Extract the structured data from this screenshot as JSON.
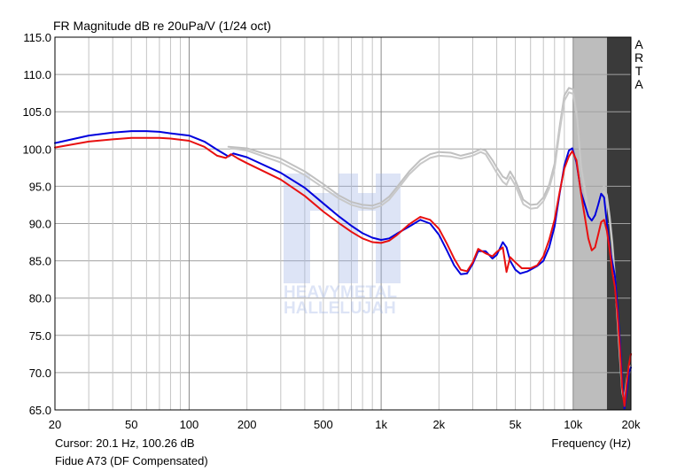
{
  "chart_data": {
    "type": "line",
    "title": "FR Magnitude dB re 20uPa/V (1/24 oct)",
    "xlabel": "Frequency (Hz)",
    "ylabel": "",
    "x_scale": "log",
    "xlim": [
      20,
      20000
    ],
    "ylim": [
      65.0,
      115.0
    ],
    "grid": true,
    "y_ticks": [
      "115.0",
      "110.0",
      "105.0",
      "100.0",
      "95.0",
      "90.0",
      "85.0",
      "80.0",
      "75.0",
      "70.0",
      "65.0"
    ],
    "x_ticks": [
      {
        "value": 20,
        "label": "20"
      },
      {
        "value": 50,
        "label": "50"
      },
      {
        "value": 100,
        "label": "100"
      },
      {
        "value": 200,
        "label": "200"
      },
      {
        "value": 500,
        "label": "500"
      },
      {
        "value": 1000,
        "label": "1k"
      },
      {
        "value": 2000,
        "label": "2k"
      },
      {
        "value": 5000,
        "label": "5k"
      },
      {
        "value": 10000,
        "label": "10k"
      },
      {
        "value": 20000,
        "label": "20k"
      }
    ],
    "shaded_regions": [
      {
        "from": 10000,
        "to": 15000,
        "color": "#bdbdbd"
      },
      {
        "from": 15000,
        "to": 20000,
        "color": "#3a3a3a"
      }
    ],
    "series": [
      {
        "color": "#c0c0c0",
        "points": [
          [
            160,
            100.3
          ],
          [
            200,
            100.1
          ],
          [
            300,
            98.7
          ],
          [
            400,
            97.0
          ],
          [
            500,
            95.3
          ],
          [
            600,
            93.8
          ],
          [
            700,
            92.9
          ],
          [
            800,
            92.5
          ],
          [
            900,
            92.4
          ],
          [
            1000,
            92.8
          ],
          [
            1100,
            93.6
          ],
          [
            1200,
            94.8
          ],
          [
            1400,
            97.0
          ],
          [
            1600,
            98.5
          ],
          [
            1800,
            99.3
          ],
          [
            2000,
            99.6
          ],
          [
            2300,
            99.5
          ],
          [
            2600,
            99.1
          ],
          [
            3000,
            99.5
          ],
          [
            3300,
            100.0
          ],
          [
            3500,
            99.8
          ],
          [
            3800,
            98.5
          ],
          [
            4000,
            97.5
          ],
          [
            4300,
            96.3
          ],
          [
            4500,
            96.0
          ],
          [
            4700,
            97.0
          ],
          [
            5000,
            95.8
          ],
          [
            5500,
            93.2
          ],
          [
            6000,
            92.5
          ],
          [
            6500,
            92.6
          ],
          [
            7000,
            93.5
          ],
          [
            7500,
            95.2
          ],
          [
            8000,
            98.0
          ],
          [
            8500,
            103.0
          ],
          [
            9000,
            107.2
          ],
          [
            9500,
            108.2
          ],
          [
            10000,
            108.0
          ],
          [
            10500,
            104.5
          ],
          [
            11000,
            98.0
          ],
          [
            12000,
            92.2
          ],
          [
            12500,
            91.2
          ],
          [
            13000,
            91.8
          ],
          [
            13500,
            93.0
          ],
          [
            14000,
            94.5
          ],
          [
            14500,
            95.0
          ],
          [
            15000,
            93.8
          ],
          [
            15500,
            91.0
          ],
          [
            16000,
            87.5
          ],
          [
            16500,
            83.0
          ],
          [
            17000,
            78.0
          ],
          [
            17500,
            73.0
          ],
          [
            18000,
            68.0
          ],
          [
            18500,
            66.5
          ],
          [
            19000,
            69.0
          ],
          [
            19500,
            70.5
          ],
          [
            20000,
            71.0
          ]
        ]
      },
      {
        "color": "#c8c8c8",
        "points": [
          [
            165,
            100.1
          ],
          [
            200,
            99.8
          ],
          [
            300,
            98.2
          ],
          [
            400,
            96.5
          ],
          [
            500,
            94.8
          ],
          [
            600,
            93.4
          ],
          [
            700,
            92.5
          ],
          [
            800,
            92.1
          ],
          [
            900,
            92.0
          ],
          [
            1000,
            92.4
          ],
          [
            1100,
            93.2
          ],
          [
            1200,
            94.4
          ],
          [
            1400,
            96.6
          ],
          [
            1600,
            98.0
          ],
          [
            1800,
            98.8
          ],
          [
            2000,
            99.1
          ],
          [
            2300,
            99.0
          ],
          [
            2600,
            98.7
          ],
          [
            3000,
            99.1
          ],
          [
            3300,
            99.6
          ],
          [
            3500,
            99.3
          ],
          [
            3800,
            97.8
          ],
          [
            4000,
            96.8
          ],
          [
            4300,
            95.6
          ],
          [
            4500,
            95.2
          ],
          [
            4700,
            96.3
          ],
          [
            5000,
            95.1
          ],
          [
            5500,
            92.6
          ],
          [
            6000,
            92.0
          ],
          [
            6500,
            92.1
          ],
          [
            7000,
            93.0
          ],
          [
            7500,
            94.7
          ],
          [
            8000,
            97.4
          ],
          [
            8500,
            102.3
          ],
          [
            9000,
            106.5
          ],
          [
            9500,
            107.6
          ],
          [
            10000,
            107.4
          ],
          [
            10500,
            104.0
          ],
          [
            11000,
            97.5
          ],
          [
            12000,
            91.6
          ],
          [
            12500,
            90.5
          ],
          [
            13000,
            91.2
          ],
          [
            13500,
            92.4
          ],
          [
            14000,
            93.8
          ],
          [
            14500,
            94.3
          ],
          [
            15000,
            93.2
          ],
          [
            15500,
            90.4
          ],
          [
            16000,
            86.8
          ],
          [
            16500,
            82.3
          ],
          [
            17000,
            77.2
          ],
          [
            17500,
            72.2
          ],
          [
            18000,
            67.4
          ],
          [
            18500,
            66.0
          ],
          [
            19000,
            68.4
          ],
          [
            19500,
            70.0
          ],
          [
            20000,
            70.6
          ]
        ]
      },
      {
        "color": "#0000dd",
        "points": [
          [
            20,
            100.8
          ],
          [
            30,
            101.8
          ],
          [
            40,
            102.2
          ],
          [
            50,
            102.4
          ],
          [
            60,
            102.4
          ],
          [
            70,
            102.3
          ],
          [
            80,
            102.1
          ],
          [
            100,
            101.8
          ],
          [
            120,
            101.0
          ],
          [
            140,
            99.9
          ],
          [
            160,
            99.0
          ],
          [
            170,
            99.4
          ],
          [
            200,
            98.9
          ],
          [
            300,
            96.8
          ],
          [
            400,
            94.8
          ],
          [
            500,
            92.7
          ],
          [
            600,
            91.0
          ],
          [
            700,
            89.7
          ],
          [
            800,
            88.7
          ],
          [
            900,
            88.1
          ],
          [
            1000,
            87.8
          ],
          [
            1100,
            88.0
          ],
          [
            1200,
            88.6
          ],
          [
            1400,
            89.6
          ],
          [
            1600,
            90.5
          ],
          [
            1800,
            90.0
          ],
          [
            2000,
            88.5
          ],
          [
            2200,
            86.4
          ],
          [
            2400,
            84.4
          ],
          [
            2600,
            83.2
          ],
          [
            2800,
            83.3
          ],
          [
            3000,
            84.6
          ],
          [
            3200,
            86.3
          ],
          [
            3500,
            86.3
          ],
          [
            3800,
            85.3
          ],
          [
            4000,
            85.8
          ],
          [
            4300,
            87.5
          ],
          [
            4500,
            86.8
          ],
          [
            4700,
            85.0
          ],
          [
            5000,
            83.8
          ],
          [
            5300,
            83.3
          ],
          [
            5800,
            83.6
          ],
          [
            6500,
            84.3
          ],
          [
            7000,
            85.0
          ],
          [
            7500,
            86.8
          ],
          [
            8000,
            89.6
          ],
          [
            8500,
            94.0
          ],
          [
            9000,
            97.8
          ],
          [
            9500,
            99.8
          ],
          [
            9900,
            100.1
          ],
          [
            10400,
            98.2
          ],
          [
            11000,
            94.2
          ],
          [
            12000,
            91.0
          ],
          [
            12500,
            90.4
          ],
          [
            13000,
            91.1
          ],
          [
            13500,
            92.5
          ],
          [
            14000,
            94.0
          ],
          [
            14500,
            93.5
          ],
          [
            15000,
            90.0
          ],
          [
            15500,
            86.8
          ],
          [
            16000,
            84.8
          ],
          [
            16500,
            83.0
          ],
          [
            17000,
            79.0
          ],
          [
            17500,
            74.5
          ],
          [
            18000,
            69.0
          ],
          [
            18500,
            65.2
          ],
          [
            19000,
            67.5
          ],
          [
            19500,
            70.0
          ],
          [
            20000,
            70.7
          ]
        ]
      },
      {
        "color": "#e81010",
        "points": [
          [
            20,
            100.2
          ],
          [
            30,
            101.0
          ],
          [
            40,
            101.3
          ],
          [
            50,
            101.5
          ],
          [
            60,
            101.5
          ],
          [
            70,
            101.5
          ],
          [
            80,
            101.4
          ],
          [
            100,
            101.1
          ],
          [
            120,
            100.3
          ],
          [
            140,
            99.1
          ],
          [
            155,
            98.8
          ],
          [
            165,
            99.3
          ],
          [
            180,
            98.7
          ],
          [
            200,
            98.1
          ],
          [
            300,
            95.9
          ],
          [
            400,
            93.7
          ],
          [
            500,
            91.6
          ],
          [
            600,
            90.1
          ],
          [
            700,
            88.9
          ],
          [
            800,
            88.0
          ],
          [
            900,
            87.5
          ],
          [
            1000,
            87.4
          ],
          [
            1100,
            87.7
          ],
          [
            1200,
            88.4
          ],
          [
            1400,
            89.9
          ],
          [
            1600,
            90.9
          ],
          [
            1800,
            90.5
          ],
          [
            2000,
            89.3
          ],
          [
            2200,
            87.3
          ],
          [
            2400,
            85.3
          ],
          [
            2600,
            83.8
          ],
          [
            2800,
            83.6
          ],
          [
            3000,
            84.8
          ],
          [
            3200,
            86.6
          ],
          [
            3500,
            86.0
          ],
          [
            3800,
            85.6
          ],
          [
            4000,
            86.2
          ],
          [
            4300,
            86.8
          ],
          [
            4500,
            83.5
          ],
          [
            4700,
            85.5
          ],
          [
            5000,
            84.8
          ],
          [
            5400,
            84.0
          ],
          [
            6000,
            84.0
          ],
          [
            6500,
            84.4
          ],
          [
            7000,
            85.6
          ],
          [
            7500,
            87.8
          ],
          [
            8000,
            90.5
          ],
          [
            8500,
            94.2
          ],
          [
            9000,
            97.4
          ],
          [
            9500,
            99.0
          ],
          [
            9900,
            99.7
          ],
          [
            10400,
            98.5
          ],
          [
            11000,
            94.0
          ],
          [
            12000,
            88.0
          ],
          [
            12500,
            86.4
          ],
          [
            13000,
            86.8
          ],
          [
            13500,
            88.5
          ],
          [
            14000,
            90.2
          ],
          [
            14500,
            90.5
          ],
          [
            15000,
            89.0
          ],
          [
            15500,
            86.5
          ],
          [
            16000,
            83.5
          ],
          [
            16500,
            81.5
          ],
          [
            17000,
            78.0
          ],
          [
            17500,
            73.5
          ],
          [
            18000,
            68.0
          ],
          [
            18500,
            65.5
          ],
          [
            19000,
            68.5
          ],
          [
            19500,
            71.0
          ],
          [
            20000,
            72.5
          ]
        ]
      }
    ]
  },
  "ui": {
    "logo": {
      "line1": "HEAVYMETAL",
      "line2": "HALLELUJAH"
    },
    "vendor": [
      "A",
      "R",
      "T",
      "A"
    ],
    "cursor": "Cursor: 20.1 Hz, 100.26 dB",
    "device": "Fidue A73 (DF Compensated)"
  }
}
